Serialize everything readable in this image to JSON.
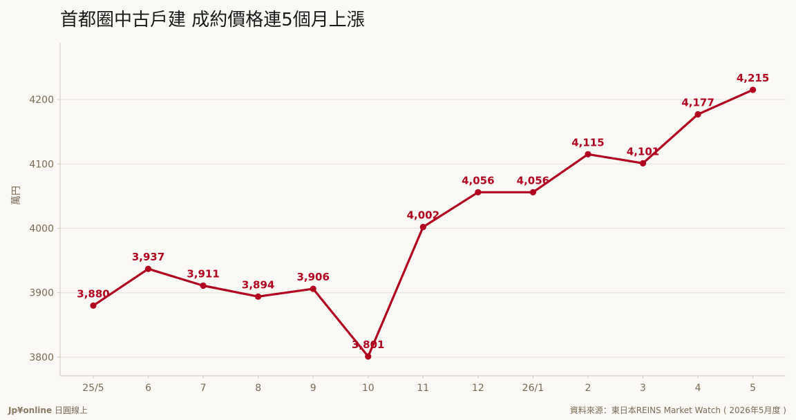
{
  "header": {
    "title": "首都圈中古戶建 成約價格連5個月上漲"
  },
  "footer": {
    "brand": "Jp¥online",
    "brand_suffix": "日圓線上",
    "source": "資料來源：東日本REINS Market Watch ( 2026年5月度 )"
  },
  "colors": {
    "background": "#faf9f5",
    "series": "#b0001e",
    "grid": "#e6e2d8",
    "axis": "#cfc9bb",
    "tick": "#7a6a55"
  },
  "chart_data": {
    "type": "line",
    "title": "首都圈中古戶建 成約價格連5個月上漲",
    "xlabel": "",
    "ylabel": "萬円",
    "categories": [
      "25/5",
      "6",
      "7",
      "8",
      "9",
      "10",
      "11",
      "12",
      "26/1",
      "2",
      "3",
      "4",
      "5"
    ],
    "series": [
      {
        "values": [
          3880,
          3937,
          3911,
          3894,
          3906,
          3801,
          4002,
          4056,
          4056,
          4115,
          4101,
          4177,
          4215
        ],
        "data_labels": [
          "3,880",
          "3,937",
          "3,911",
          "3,894",
          "3,906",
          "3,801",
          "4,002",
          "4,056",
          "4,056",
          "4,115",
          "4,101",
          "4,177",
          "4,215"
        ]
      }
    ],
    "ylim": [
      3771,
      4288
    ],
    "yticks": [
      3800,
      3900,
      4000,
      4100,
      4200
    ],
    "grid": true,
    "legend": "none"
  }
}
